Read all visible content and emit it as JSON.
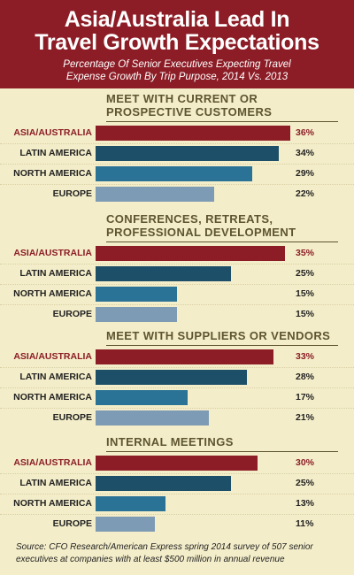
{
  "header": {
    "title_line1": "Asia/Australia Lead In",
    "title_line2": "Travel Growth Expectations",
    "subtitle_line1": "Percentage Of Senior Executives Expecting Travel",
    "subtitle_line2": "Expense Growth By Trip Purpose, 2014 Vs. 2013"
  },
  "colors": {
    "background": "#f3edc9",
    "header": "#8c1d26",
    "asia_australia": "#8c1d26",
    "latin_america": "#1d4f68",
    "north_america": "#2a7396",
    "europe": "#7e9bb5",
    "group_title": "#5e5430",
    "highlight_text": "#8c1d26"
  },
  "chart_data": [
    {
      "type": "bar",
      "title": "MEET WITH CURRENT OR PROSPECTIVE CUSTOMERS",
      "categories": [
        "ASIA/AUSTRALIA",
        "LATIN AMERICA",
        "NORTH AMERICA",
        "EUROPE"
      ],
      "values": [
        36,
        34,
        29,
        22
      ],
      "value_labels": [
        "36%",
        "34%",
        "29%",
        "22%"
      ],
      "orientation": "horizontal",
      "xlim": [
        0,
        40
      ]
    },
    {
      "type": "bar",
      "title": "CONFERENCES, RETREATS, PROFESSIONAL DEVELOPMENT",
      "categories": [
        "ASIA/AUSTRALIA",
        "LATIN AMERICA",
        "NORTH AMERICA",
        "EUROPE"
      ],
      "values": [
        35,
        25,
        15,
        15
      ],
      "value_labels": [
        "35%",
        "25%",
        "15%",
        "15%"
      ],
      "orientation": "horizontal",
      "xlim": [
        0,
        40
      ]
    },
    {
      "type": "bar",
      "title": "MEET WITH SUPPLIERS OR VENDORS",
      "categories": [
        "ASIA/AUSTRALIA",
        "LATIN AMERICA",
        "NORTH AMERICA",
        "EUROPE"
      ],
      "values": [
        33,
        28,
        17,
        21
      ],
      "value_labels": [
        "33%",
        "28%",
        "17%",
        "21%"
      ],
      "orientation": "horizontal",
      "xlim": [
        0,
        40
      ]
    },
    {
      "type": "bar",
      "title": "INTERNAL MEETINGS",
      "categories": [
        "ASIA/AUSTRALIA",
        "LATIN AMERICA",
        "NORTH AMERICA",
        "EUROPE"
      ],
      "values": [
        30,
        25,
        13,
        11
      ],
      "value_labels": [
        "30%",
        "25%",
        "13%",
        "11%"
      ],
      "orientation": "horizontal",
      "xlim": [
        0,
        40
      ]
    }
  ],
  "source": "Source: CFO Research/American Express spring 2014 survey of 507 senior executives at companies with at least $500 million in annual revenue"
}
